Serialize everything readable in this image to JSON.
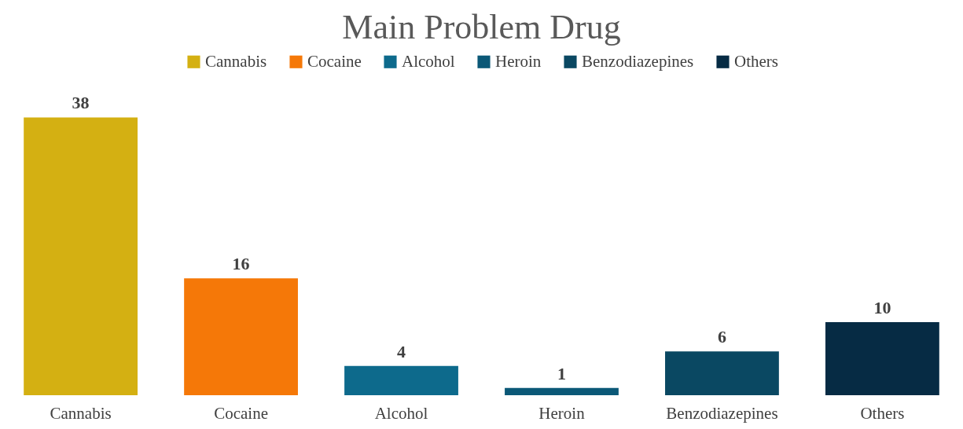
{
  "chart_data": {
    "type": "bar",
    "title": "Main Problem Drug",
    "categories": [
      "Cannabis",
      "Cocaine",
      "Alcohol",
      "Heroin",
      "Benzodiazepines",
      "Others"
    ],
    "series": [
      {
        "name": "Cannabis",
        "color": "#d4b012",
        "values": [
          38,
          null,
          null,
          null,
          null,
          null
        ]
      },
      {
        "name": "Cocaine",
        "color": "#f57808",
        "values": [
          null,
          16,
          null,
          null,
          null,
          null
        ]
      },
      {
        "name": "Alcohol",
        "color": "#0d6a8c",
        "values": [
          null,
          null,
          4,
          null,
          null,
          null
        ]
      },
      {
        "name": "Heroin",
        "color": "#0b5877",
        "values": [
          null,
          null,
          null,
          1,
          null,
          null
        ]
      },
      {
        "name": "Benzodiazepines",
        "color": "#0a4862",
        "values": [
          null,
          null,
          null,
          null,
          6,
          null
        ]
      },
      {
        "name": "Others",
        "color": "#062b44",
        "values": [
          null,
          null,
          null,
          null,
          null,
          10
        ]
      }
    ],
    "stacked": true,
    "data_labels": true,
    "legend": "top"
  }
}
